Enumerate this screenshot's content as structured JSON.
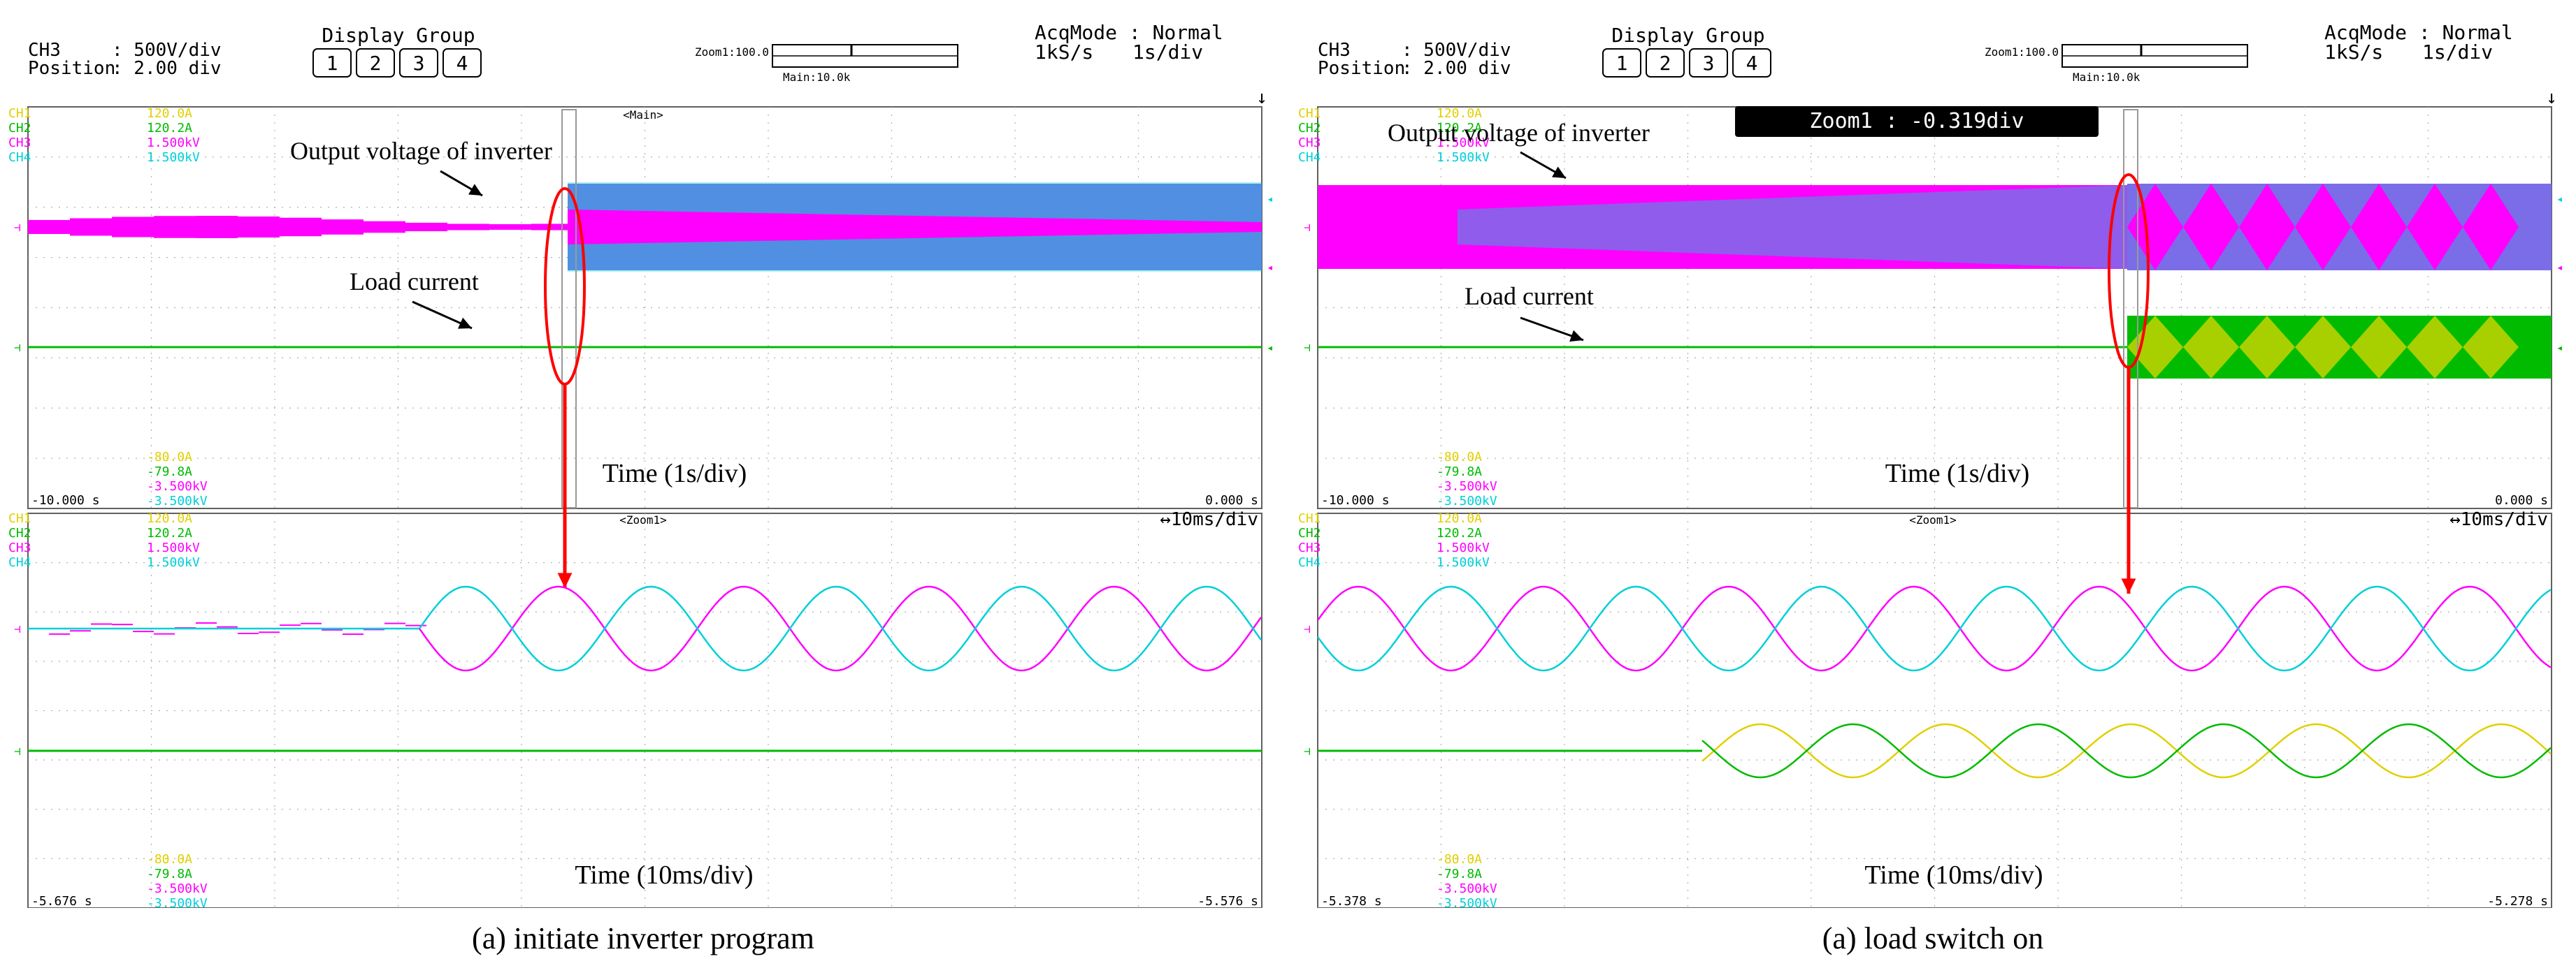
{
  "colors": {
    "ch1": "#e0d000",
    "ch2": "#00bb00",
    "ch3": "#ff00ff",
    "ch4": "#00d0d8",
    "overlap": "#7b6ce8",
    "annotation": "#ff0000",
    "grid": "#b0b0b0",
    "tag_bg": "#000000"
  },
  "panels": [
    {
      "id": "a",
      "caption": "(a) initiate inverter program",
      "header": {
        "channel": "CH3",
        "scale": ": 500V/div",
        "position_label": "Position",
        "position_value": ": 2.00 div",
        "display_group_title": "Display Group",
        "display_group_buttons": [
          "1",
          "2",
          "3",
          "4"
        ],
        "zoom_label": "Zoom1:100.0",
        "main_label": "Main:10.0k",
        "acq_mode": "AcqMode : Normal",
        "sample_rate": "1kS/s",
        "time_div": "1s/div"
      },
      "zoom_tag": "",
      "main_view": {
        "tag": "<Main>",
        "scales_top": [
          {
            "ch": "CH1",
            "val": "120.0A",
            "color": "ch1"
          },
          {
            "ch": "CH2",
            "val": "120.2A",
            "color": "ch2"
          },
          {
            "ch": "CH3",
            "val": "1.500kV",
            "color": "ch3"
          },
          {
            "ch": "CH4",
            "val": "1.500kV",
            "color": "ch4"
          }
        ],
        "scales_bottom": [
          {
            "val": "-80.0A",
            "color": "ch1"
          },
          {
            "val": "-79.8A",
            "color": "ch2"
          },
          {
            "val": "-3.500kV",
            "color": "ch3"
          },
          {
            "val": "-3.500kV",
            "color": "ch4"
          }
        ],
        "time_start": "-10.000 s",
        "time_end": "0.000 s",
        "time_label": "Time (1s/div)",
        "annotations": [
          "Output voltage of  inverter",
          "Load current"
        ]
      },
      "zoom_view": {
        "tag": "<Zoom1>",
        "time_div": "↔10ms/div",
        "scales_top": [
          {
            "ch": "CH1",
            "val": "120.0A",
            "color": "ch1"
          },
          {
            "ch": "CH2",
            "val": "120.2A",
            "color": "ch2"
          },
          {
            "ch": "CH3",
            "val": "1.500kV",
            "color": "ch3"
          },
          {
            "ch": "CH4",
            "val": "1.500kV",
            "color": "ch4"
          }
        ],
        "scales_bottom": [
          {
            "val": "-80.0A",
            "color": "ch1"
          },
          {
            "val": "-79.8A",
            "color": "ch2"
          },
          {
            "val": "-3.500kV",
            "color": "ch3"
          },
          {
            "val": "-3.500kV",
            "color": "ch4"
          }
        ],
        "time_start": "-5.676 s",
        "time_end": "-5.576 s",
        "time_label": "Time (10ms/div)"
      }
    },
    {
      "id": "b",
      "caption": "(a) load switch on",
      "header": {
        "channel": "CH3",
        "scale": ": 500V/div",
        "position_label": "Position",
        "position_value": ": 2.00 div",
        "display_group_title": "Display Group",
        "display_group_buttons": [
          "1",
          "2",
          "3",
          "4"
        ],
        "zoom_label": "Zoom1:100.0",
        "main_label": "Main:10.0k",
        "acq_mode": "AcqMode : Normal",
        "sample_rate": "1kS/s",
        "time_div": "1s/div"
      },
      "zoom_tag": "Zoom1 : -0.319div",
      "main_view": {
        "tag": "",
        "scales_top": [
          {
            "ch": "CH1",
            "val": "120.0A",
            "color": "ch1"
          },
          {
            "ch": "CH2",
            "val": "120.2A",
            "color": "ch2"
          },
          {
            "ch": "CH3",
            "val": "1.500kV",
            "color": "ch3"
          },
          {
            "ch": "CH4",
            "val": "1.500kV",
            "color": "ch4"
          }
        ],
        "scales_bottom": [
          {
            "val": "-80.0A",
            "color": "ch1"
          },
          {
            "val": "-79.8A",
            "color": "ch2"
          },
          {
            "val": "-3.500kV",
            "color": "ch3"
          },
          {
            "val": "-3.500kV",
            "color": "ch4"
          }
        ],
        "time_start": "-10.000 s",
        "time_end": "0.000 s",
        "time_label": "Time (1s/div)",
        "annotations": [
          "Output voltage of  inverter",
          "Load current"
        ]
      },
      "zoom_view": {
        "tag": "<Zoom1>",
        "time_div": "↔10ms/div",
        "scales_top": [
          {
            "ch": "CH1",
            "val": "120.0A",
            "color": "ch1"
          },
          {
            "ch": "CH2",
            "val": "120.2A",
            "color": "ch2"
          },
          {
            "ch": "CH3",
            "val": "1.500kV",
            "color": "ch3"
          },
          {
            "ch": "CH4",
            "val": "1.500kV",
            "color": "ch4"
          }
        ],
        "scales_bottom": [
          {
            "val": "-80.0A",
            "color": "ch1"
          },
          {
            "val": "-79.8A",
            "color": "ch2"
          },
          {
            "val": "-3.500kV",
            "color": "ch3"
          },
          {
            "val": "-3.500kV",
            "color": "ch4"
          }
        ],
        "time_start": "-5.378 s",
        "time_end": "-5.278 s",
        "time_label": "Time (10ms/div)"
      }
    }
  ],
  "chart_data": [
    {
      "type": "line",
      "panel": "a",
      "view": "main",
      "xlabel": "Time (1s/div)",
      "x_range": [
        -10.0,
        0.0
      ],
      "x_unit": "s",
      "series": [
        {
          "name": "CH3",
          "y_range": [
            -3.5,
            1.5
          ],
          "unit": "kV",
          "segments": [
            {
              "x": [
                -10.0,
                -6.0
              ],
              "envelope": 0.04
            },
            {
              "x": [
                -6.0,
                0.0
              ],
              "envelope": 0.55
            }
          ]
        },
        {
          "name": "CH4",
          "y_range": [
            -3.5,
            1.5
          ],
          "unit": "kV",
          "segments": [
            {
              "x": [
                -10.0,
                -6.0
              ],
              "envelope": 0.0
            },
            {
              "x": [
                -6.0,
                0.0
              ],
              "envelope": 0.55
            }
          ]
        },
        {
          "name": "CH2",
          "y_range": [
            -79.8,
            120.2
          ],
          "unit": "A",
          "segments": [
            {
              "x": [
                -10.0,
                0.0
              ],
              "envelope": 0.0
            }
          ]
        }
      ]
    },
    {
      "type": "line",
      "panel": "a",
      "view": "zoom",
      "xlabel": "Time (10ms/div)",
      "x_range": [
        -5.676,
        -5.576
      ],
      "x_unit": "s",
      "series": [
        {
          "name": "CH3",
          "unit": "kV",
          "start_x": -5.646,
          "amplitude": 0.55,
          "period": 0.0245,
          "phase": 0.0
        },
        {
          "name": "CH4",
          "unit": "kV",
          "start_x": -5.646,
          "amplitude": 0.55,
          "period": 0.0245,
          "phase": 3.1416
        },
        {
          "name": "CH2",
          "unit": "A",
          "amplitude": 0.0
        }
      ]
    },
    {
      "type": "line",
      "panel": "b",
      "view": "main",
      "xlabel": "Time (1s/div)",
      "x_range": [
        -10.0,
        0.0
      ],
      "x_unit": "s",
      "series": [
        {
          "name": "CH3",
          "y_range": [
            -3.5,
            1.5
          ],
          "unit": "kV",
          "segments": [
            {
              "x": [
                -10.0,
                0.0
              ],
              "envelope": 0.6
            }
          ]
        },
        {
          "name": "CH4",
          "y_range": [
            -3.5,
            1.5
          ],
          "unit": "kV",
          "segments": [
            {
              "x": [
                -10.0,
                -5.3
              ],
              "envelope": 0.6
            },
            {
              "x": [
                -5.3,
                0.0
              ],
              "envelope": 0.6
            }
          ]
        },
        {
          "name": "CH1",
          "y_range": [
            -80.0,
            120.0
          ],
          "unit": "A",
          "segments": [
            {
              "x": [
                -10.0,
                -5.3
              ],
              "envelope": 0.0
            },
            {
              "x": [
                -5.3,
                0.0
              ],
              "envelope": 0.45
            }
          ]
        },
        {
          "name": "CH2",
          "y_range": [
            -79.8,
            120.2
          ],
          "unit": "A",
          "segments": [
            {
              "x": [
                -10.0,
                -5.3
              ],
              "envelope": 0.0
            },
            {
              "x": [
                -5.3,
                0.0
              ],
              "envelope": 0.45
            }
          ]
        }
      ]
    },
    {
      "type": "line",
      "panel": "b",
      "view": "zoom",
      "xlabel": "Time (10ms/div)",
      "x_range": [
        -5.378,
        -5.278
      ],
      "x_unit": "s",
      "series": [
        {
          "name": "CH3",
          "unit": "kV",
          "amplitude": 0.55,
          "period": 0.0245,
          "phase": 0.0
        },
        {
          "name": "CH4",
          "unit": "kV",
          "amplitude": 0.55,
          "period": 0.0245,
          "phase": 3.1416
        },
        {
          "name": "CH1",
          "unit": "A",
          "start_x": -5.331,
          "amplitude": 0.35,
          "period": 0.0245,
          "phase": 1.2
        },
        {
          "name": "CH2",
          "unit": "A",
          "start_x": -5.331,
          "amplitude": 0.35,
          "period": 0.0245,
          "phase": 4.3
        }
      ]
    }
  ]
}
